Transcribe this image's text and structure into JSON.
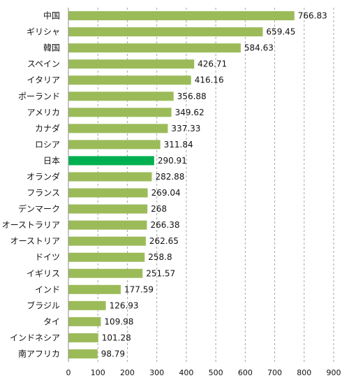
{
  "chart_data": {
    "type": "bar",
    "orientation": "horizontal",
    "title": "",
    "xlabel": "",
    "ylabel": "",
    "categories": [
      "中国",
      "ギリシャ",
      "韓国",
      "スペイン",
      "イタリア",
      "ポーランド",
      "アメリカ",
      "カナダ",
      "ロシア",
      "日本",
      "オランダ",
      "フランス",
      "デンマーク",
      "オーストラリア",
      "オーストリア",
      "ドイツ",
      "イギリス",
      "インド",
      "ブラジル",
      "タイ",
      "インドネシア",
      "南アフリカ"
    ],
    "values": [
      766.83,
      659.45,
      584.63,
      426.71,
      416.16,
      356.88,
      349.62,
      337.33,
      311.84,
      290.91,
      282.88,
      269.04,
      268,
      266.38,
      262.65,
      258.8,
      251.57,
      177.59,
      126.93,
      109.98,
      101.28,
      98.79
    ],
    "value_labels": [
      "766.83",
      "659.45",
      "584.63",
      "426.71",
      "416.16",
      "356.88",
      "349.62",
      "337.33",
      "311.84",
      "290.91",
      "282.88",
      "269.04",
      "268",
      "266.38",
      "262.65",
      "258.8",
      "251.57",
      "177.59",
      "126.93",
      "109.98",
      "101.28",
      "98.79"
    ],
    "xlim": [
      0,
      900
    ],
    "x_ticks": [
      0,
      100,
      200,
      300,
      400,
      500,
      600,
      700,
      800,
      900
    ],
    "x_tick_labels": [
      "0",
      "100",
      "200",
      "300",
      "400",
      "500",
      "600",
      "700",
      "800",
      "900"
    ],
    "grid": "vertical dashed",
    "legend": "none",
    "bar_color": "#9bbb59",
    "highlight_category": "日本",
    "highlight_color": "#00b050"
  }
}
